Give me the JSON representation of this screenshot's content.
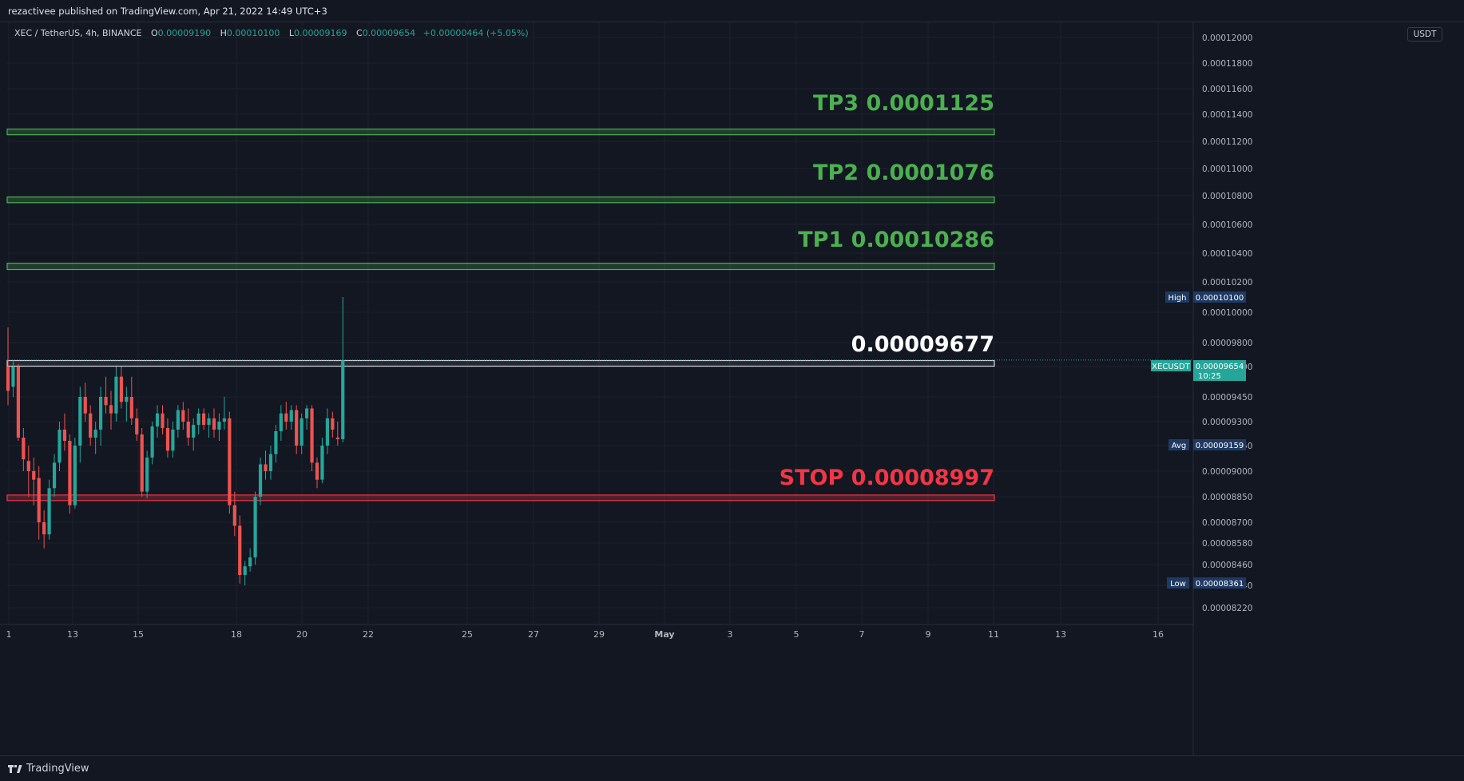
{
  "header": {
    "publish_text": "rezactivee published on TradingView.com, Apr 21, 2022 14:49 UTC+3"
  },
  "legend": {
    "symbol": "XEC / TetherUS, 4h, BINANCE",
    "open_label": "O",
    "open": "0.00009190",
    "high_label": "H",
    "high": "0.00010100",
    "low_label": "L",
    "low": "0.00009169",
    "close_label": "C",
    "close": "0.00009654",
    "change": "+0.00000464 (+5.05%)"
  },
  "price_scale": {
    "unit": "USDT",
    "ticks": [
      "0.00012000",
      "0.00011800",
      "0.00011600",
      "0.00011400",
      "0.00011200",
      "0.00011000",
      "0.00010800",
      "0.00010600",
      "0.00010400",
      "0.00010200",
      "0.00010000",
      "0.00009800",
      "0.00009600",
      "0.00009450",
      "0.00009300",
      "0.00009150",
      "0.00009000",
      "0.00008850",
      "0.00008700",
      "0.00008580",
      "0.00008460",
      "0.00008340",
      "0.00008220"
    ]
  },
  "time_scale": {
    "ticks": [
      "1",
      "13",
      "15",
      "18",
      "20",
      "22",
      "25",
      "27",
      "29",
      "May",
      "3",
      "5",
      "7",
      "9",
      "11",
      "13",
      "16"
    ]
  },
  "tags": {
    "high_label": "High",
    "high_value": "0.00010100",
    "current_label": "XECUSDT",
    "current_value": "0.00009654",
    "countdown": "10:25",
    "avg_label": "Avg",
    "avg_value": "0.00009159",
    "low_label": "Low",
    "low_value": "0.00008361"
  },
  "zones": [
    {
      "label": "TP3  0.0001125",
      "color": "#4caf50"
    },
    {
      "label": "TP2  0.0001076",
      "color": "#4caf50"
    },
    {
      "label": "TP1  0.00010286",
      "color": "#4caf50"
    },
    {
      "label": "0.00009677",
      "color": "#ffffff"
    },
    {
      "label": "STOP  0.00008997",
      "color": "#f23645"
    }
  ],
  "colors": {
    "up": "#26a69a",
    "down": "#ef5350",
    "background": "#131722",
    "grid": "#1e222d"
  },
  "brand": "TradingView",
  "chart_data": {
    "type": "candlestick",
    "symbol": "XEC / TetherUS",
    "interval": "4h",
    "exchange": "BINANCE",
    "ylim": [
      8.16e-05,
      0.0001205
    ],
    "grid": true,
    "candles": [
      {
        "t": 0,
        "o": 9.6e-05,
        "h": 9.9e-05,
        "l": 9.4e-05,
        "c": 9.48e-05
      },
      {
        "t": 1,
        "o": 9.5e-05,
        "h": 9.65e-05,
        "l": 9.45e-05,
        "c": 9.6e-05
      },
      {
        "t": 2,
        "o": 9.6e-05,
        "h": 9.62e-05,
        "l": 9.18e-05,
        "c": 9.2e-05
      },
      {
        "t": 3,
        "o": 9.2e-05,
        "h": 9.26e-05,
        "l": 9e-05,
        "c": 9.07e-05
      },
      {
        "t": 4,
        "o": 9.06e-05,
        "h": 9.15e-05,
        "l": 8.85e-05,
        "c": 9e-05
      },
      {
        "t": 5,
        "o": 9e-05,
        "h": 9.08e-05,
        "l": 8.8e-05,
        "c": 8.95e-05
      },
      {
        "t": 6,
        "o": 8.96e-05,
        "h": 9.03e-05,
        "l": 8.6e-05,
        "c": 8.7e-05
      },
      {
        "t": 7,
        "o": 8.7e-05,
        "h": 8.77e-05,
        "l": 8.55e-05,
        "c": 8.63e-05
      },
      {
        "t": 8,
        "o": 8.63e-05,
        "h": 8.95e-05,
        "l": 8.6e-05,
        "c": 8.9e-05
      },
      {
        "t": 9,
        "o": 8.9e-05,
        "h": 9.1e-05,
        "l": 8.85e-05,
        "c": 9.05e-05
      },
      {
        "t": 10,
        "o": 9.05e-05,
        "h": 9.3e-05,
        "l": 9e-05,
        "c": 9.25e-05
      },
      {
        "t": 11,
        "o": 9.25e-05,
        "h": 9.35e-05,
        "l": 9.12e-05,
        "c": 9.18e-05
      },
      {
        "t": 12,
        "o": 9.18e-05,
        "h": 9.22e-05,
        "l": 8.75e-05,
        "c": 8.8e-05
      },
      {
        "t": 13,
        "o": 8.8e-05,
        "h": 9.2e-05,
        "l": 8.78e-05,
        "c": 9.15e-05
      },
      {
        "t": 14,
        "o": 9.15e-05,
        "h": 9.5e-05,
        "l": 9.05e-05,
        "c": 9.45e-05
      },
      {
        "t": 15,
        "o": 9.45e-05,
        "h": 9.52e-05,
        "l": 9.3e-05,
        "c": 9.35e-05
      },
      {
        "t": 16,
        "o": 9.35e-05,
        "h": 9.4e-05,
        "l": 9.15e-05,
        "c": 9.2e-05
      },
      {
        "t": 17,
        "o": 9.2e-05,
        "h": 9.3e-05,
        "l": 9.1e-05,
        "c": 9.25e-05
      },
      {
        "t": 18,
        "o": 9.25e-05,
        "h": 9.5e-05,
        "l": 9.15e-05,
        "c": 9.45e-05
      },
      {
        "t": 19,
        "o": 9.45e-05,
        "h": 9.55e-05,
        "l": 9.35e-05,
        "c": 9.4e-05
      },
      {
        "t": 20,
        "o": 9.4e-05,
        "h": 9.48e-05,
        "l": 9.25e-05,
        "c": 9.35e-05
      },
      {
        "t": 21,
        "o": 9.35e-05,
        "h": 9.6e-05,
        "l": 9.3e-05,
        "c": 9.55e-05
      },
      {
        "t": 22,
        "o": 9.55e-05,
        "h": 9.6e-05,
        "l": 9.38e-05,
        "c": 9.42e-05
      },
      {
        "t": 23,
        "o": 9.42e-05,
        "h": 9.5e-05,
        "l": 9.3e-05,
        "c": 9.45e-05
      },
      {
        "t": 24,
        "o": 9.45e-05,
        "h": 9.55e-05,
        "l": 9.28e-05,
        "c": 9.32e-05
      },
      {
        "t": 25,
        "o": 9.32e-05,
        "h": 9.38e-05,
        "l": 9.18e-05,
        "c": 9.22e-05
      },
      {
        "t": 26,
        "o": 9.22e-05,
        "h": 9.26e-05,
        "l": 8.85e-05,
        "c": 8.88e-05
      },
      {
        "t": 27,
        "o": 8.88e-05,
        "h": 9.12e-05,
        "l": 8.84e-05,
        "c": 9.08e-05
      },
      {
        "t": 28,
        "o": 9.08e-05,
        "h": 9.3e-05,
        "l": 9.04e-05,
        "c": 9.27e-05
      },
      {
        "t": 29,
        "o": 9.27e-05,
        "h": 9.4e-05,
        "l": 9.2e-05,
        "c": 9.35e-05
      },
      {
        "t": 30,
        "o": 9.35e-05,
        "h": 9.4e-05,
        "l": 9.22e-05,
        "c": 9.26e-05
      },
      {
        "t": 31,
        "o": 9.26e-05,
        "h": 9.32e-05,
        "l": 9.08e-05,
        "c": 9.12e-05
      },
      {
        "t": 32,
        "o": 9.12e-05,
        "h": 9.3e-05,
        "l": 9.08e-05,
        "c": 9.25e-05
      },
      {
        "t": 33,
        "o": 9.25e-05,
        "h": 9.4e-05,
        "l": 9.2e-05,
        "c": 9.37e-05
      },
      {
        "t": 34,
        "o": 9.37e-05,
        "h": 9.42e-05,
        "l": 9.25e-05,
        "c": 9.3e-05
      },
      {
        "t": 35,
        "o": 9.3e-05,
        "h": 9.38e-05,
        "l": 9.15e-05,
        "c": 9.2e-05
      },
      {
        "t": 36,
        "o": 9.2e-05,
        "h": 9.32e-05,
        "l": 9.12e-05,
        "c": 9.28e-05
      },
      {
        "t": 37,
        "o": 9.28e-05,
        "h": 9.38e-05,
        "l": 9.22e-05,
        "c": 9.35e-05
      },
      {
        "t": 38,
        "o": 9.35e-05,
        "h": 9.38e-05,
        "l": 9.25e-05,
        "c": 9.28e-05
      },
      {
        "t": 39,
        "o": 9.28e-05,
        "h": 9.35e-05,
        "l": 9.2e-05,
        "c": 9.32e-05
      },
      {
        "t": 40,
        "o": 9.32e-05,
        "h": 9.38e-05,
        "l": 9.2e-05,
        "c": 9.25e-05
      },
      {
        "t": 41,
        "o": 9.25e-05,
        "h": 9.35e-05,
        "l": 9.18e-05,
        "c": 9.3e-05
      },
      {
        "t": 42,
        "o": 9.3e-05,
        "h": 9.45e-05,
        "l": 9.25e-05,
        "c": 9.32e-05
      },
      {
        "t": 43,
        "o": 9.32e-05,
        "h": 9.36e-05,
        "l": 8.75e-05,
        "c": 8.8e-05
      },
      {
        "t": 44,
        "o": 8.8e-05,
        "h": 8.88e-05,
        "l": 8.62e-05,
        "c": 8.68e-05
      },
      {
        "t": 45,
        "o": 8.68e-05,
        "h": 8.74e-05,
        "l": 8.35e-05,
        "c": 8.4e-05
      },
      {
        "t": 46,
        "o": 8.4e-05,
        "h": 8.48e-05,
        "l": 8.34e-05,
        "c": 8.45e-05
      },
      {
        "t": 47,
        "o": 8.45e-05,
        "h": 8.55e-05,
        "l": 8.42e-05,
        "c": 8.5e-05
      },
      {
        "t": 48,
        "o": 8.5e-05,
        "h": 8.88e-05,
        "l": 8.46e-05,
        "c": 8.85e-05
      },
      {
        "t": 49,
        "o": 8.85e-05,
        "h": 9.08e-05,
        "l": 8.8e-05,
        "c": 9.04e-05
      },
      {
        "t": 50,
        "o": 9.04e-05,
        "h": 9.12e-05,
        "l": 8.95e-05,
        "c": 9e-05
      },
      {
        "t": 51,
        "o": 9e-05,
        "h": 9.15e-05,
        "l": 8.95e-05,
        "c": 9.1e-05
      },
      {
        "t": 52,
        "o": 9.1e-05,
        "h": 9.28e-05,
        "l": 9.05e-05,
        "c": 9.24e-05
      },
      {
        "t": 53,
        "o": 9.24e-05,
        "h": 9.4e-05,
        "l": 9.18e-05,
        "c": 9.35e-05
      },
      {
        "t": 54,
        "o": 9.35e-05,
        "h": 9.42e-05,
        "l": 9.25e-05,
        "c": 9.3e-05
      },
      {
        "t": 55,
        "o": 9.3e-05,
        "h": 9.4e-05,
        "l": 9.25e-05,
        "c": 9.37e-05
      },
      {
        "t": 56,
        "o": 9.37e-05,
        "h": 9.4e-05,
        "l": 9.1e-05,
        "c": 9.15e-05
      },
      {
        "t": 57,
        "o": 9.15e-05,
        "h": 9.35e-05,
        "l": 9.1e-05,
        "c": 9.32e-05
      },
      {
        "t": 58,
        "o": 9.32e-05,
        "h": 9.4e-05,
        "l": 9.25e-05,
        "c": 9.38e-05
      },
      {
        "t": 59,
        "o": 9.38e-05,
        "h": 9.4e-05,
        "l": 9e-05,
        "c": 9.05e-05
      },
      {
        "t": 60,
        "o": 9.05e-05,
        "h": 9.08e-05,
        "l": 8.9e-05,
        "c": 8.95e-05
      },
      {
        "t": 61,
        "o": 8.95e-05,
        "h": 9.2e-05,
        "l": 8.93e-05,
        "c": 9.15e-05
      },
      {
        "t": 62,
        "o": 9.15e-05,
        "h": 9.38e-05,
        "l": 9.1e-05,
        "c": 9.32e-05
      },
      {
        "t": 63,
        "o": 9.32e-05,
        "h": 9.36e-05,
        "l": 9.2e-05,
        "c": 9.25e-05
      },
      {
        "t": 64,
        "o": 9.2e-05,
        "h": 9.3e-05,
        "l": 9.15e-05,
        "c": 9.19e-05
      },
      {
        "t": 65,
        "o": 9.19e-05,
        "h": 0.000101,
        "l": 9.17e-05,
        "c": 9.65e-05
      }
    ],
    "horizontal_zones": [
      {
        "name": "TP3",
        "label_value": 0.0001125,
        "band": [
          0.0001125,
          0.0001129
        ]
      },
      {
        "name": "TP2",
        "label_value": 0.0001076,
        "band": [
          0.0001076,
          0.0001079
        ]
      },
      {
        "name": "TP1",
        "label_value": 0.00010286,
        "band": [
          0.00010286,
          0.0001033
        ]
      },
      {
        "name": "",
        "label_value": 9.677e-05,
        "band": [
          9.62e-05,
          9.65e-05
        ]
      },
      {
        "name": "STOP",
        "label_value": 8.997e-05,
        "band": [
          8.84e-05,
          8.86e-05
        ]
      }
    ],
    "last_price": 9.654e-05,
    "high": 0.000101,
    "avg": 9.159e-05,
    "low": 8.361e-05
  }
}
